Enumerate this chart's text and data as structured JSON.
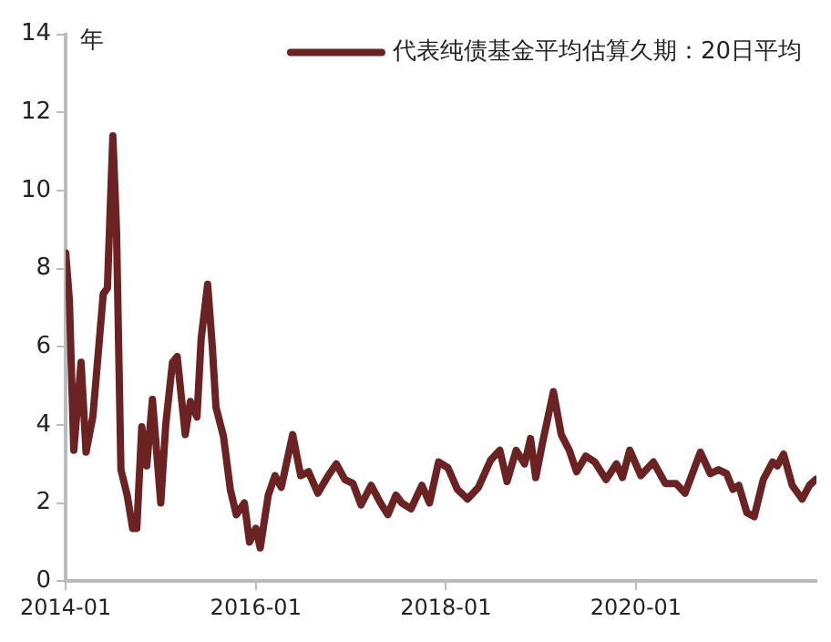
{
  "chart_data": {
    "type": "line",
    "ylabel": "年",
    "legend": "top right",
    "grid": false,
    "marker": "none",
    "line_style": "solid",
    "xlim": [
      "2014-01-01",
      "2021-11-25"
    ],
    "xticks": [
      "2014-01",
      "2016-01",
      "2018-01",
      "2020-01"
    ],
    "ylim": [
      0,
      14
    ],
    "yticks": [
      0,
      2,
      4,
      6,
      8,
      10,
      12,
      14
    ],
    "series": [
      {
        "name": "代表纯债基金平均估算久期：20日平均",
        "color": "#6b2222",
        "x": [
          "2014-01-01",
          "2014-01-15",
          "2014-02-01",
          "2014-03-01",
          "2014-03-20",
          "2014-04-15",
          "2014-05-08",
          "2014-05-25",
          "2014-06-10",
          "2014-07-01",
          "2014-07-15",
          "2014-08-01",
          "2014-08-25",
          "2014-09-15",
          "2014-10-01",
          "2014-10-20",
          "2014-11-08",
          "2014-11-30",
          "2015-01-01",
          "2015-01-20",
          "2015-02-15",
          "2015-03-05",
          "2015-04-05",
          "2015-04-25",
          "2015-05-20",
          "2015-06-05",
          "2015-06-30",
          "2015-07-18",
          "2015-08-01",
          "2015-08-30",
          "2015-09-25",
          "2015-10-18",
          "2015-11-18",
          "2015-12-08",
          "2016-01-01",
          "2016-01-18",
          "2016-02-18",
          "2016-03-15",
          "2016-04-08",
          "2016-05-22",
          "2016-06-22",
          "2016-07-22",
          "2016-08-27",
          "2016-10-06",
          "2016-11-06",
          "2016-12-09",
          "2017-01-09",
          "2017-02-09",
          "2017-03-20",
          "2017-04-25",
          "2017-05-23",
          "2017-06-23",
          "2017-07-16",
          "2017-08-20",
          "2017-10-01",
          "2017-10-30",
          "2017-12-04",
          "2018-01-09",
          "2018-02-14",
          "2018-03-25",
          "2018-05-06",
          "2018-06-22",
          "2018-07-27",
          "2018-08-24",
          "2018-09-28",
          "2018-10-30",
          "2018-11-22",
          "2018-12-12",
          "2019-01-09",
          "2019-02-18",
          "2019-03-20",
          "2019-04-20",
          "2019-05-18",
          "2019-06-22",
          "2019-07-27",
          "2019-09-08",
          "2019-10-18",
          "2019-11-10",
          "2019-12-08",
          "2020-01-20",
          "2020-03-08",
          "2020-04-23",
          "2020-06-03",
          "2020-07-08",
          "2020-09-05",
          "2020-10-13",
          "2020-11-14",
          "2020-12-15",
          "2021-01-08",
          "2021-01-31",
          "2021-03-03",
          "2021-03-31",
          "2021-05-05",
          "2021-06-10",
          "2021-06-28",
          "2021-07-22",
          "2021-08-24",
          "2021-10-01",
          "2021-10-29",
          "2021-11-22"
        ],
        "values": [
          8.4,
          7.2,
          3.35,
          5.6,
          3.3,
          4.2,
          6.0,
          7.35,
          7.5,
          11.4,
          9.0,
          2.85,
          2.2,
          1.35,
          1.35,
          3.95,
          2.95,
          4.65,
          2.0,
          4.0,
          5.6,
          5.75,
          3.75,
          4.6,
          4.2,
          6.2,
          7.6,
          6.0,
          4.45,
          3.7,
          2.35,
          1.7,
          2.0,
          1.0,
          1.35,
          0.85,
          2.2,
          2.7,
          2.4,
          3.75,
          2.7,
          2.8,
          2.25,
          2.7,
          3.0,
          2.6,
          2.5,
          1.95,
          2.45,
          2.0,
          1.7,
          2.2,
          2.0,
          1.85,
          2.45,
          2.0,
          3.05,
          2.9,
          2.35,
          2.1,
          2.4,
          3.1,
          3.35,
          2.55,
          3.35,
          3.0,
          3.65,
          2.65,
          3.6,
          4.85,
          3.75,
          3.35,
          2.8,
          3.2,
          3.05,
          2.6,
          3.0,
          2.65,
          3.35,
          2.7,
          3.05,
          2.5,
          2.5,
          2.25,
          3.3,
          2.75,
          2.85,
          2.75,
          2.35,
          2.45,
          1.75,
          1.65,
          2.6,
          3.05,
          2.95,
          3.25,
          2.45,
          2.1,
          2.45,
          2.6
        ]
      }
    ]
  }
}
